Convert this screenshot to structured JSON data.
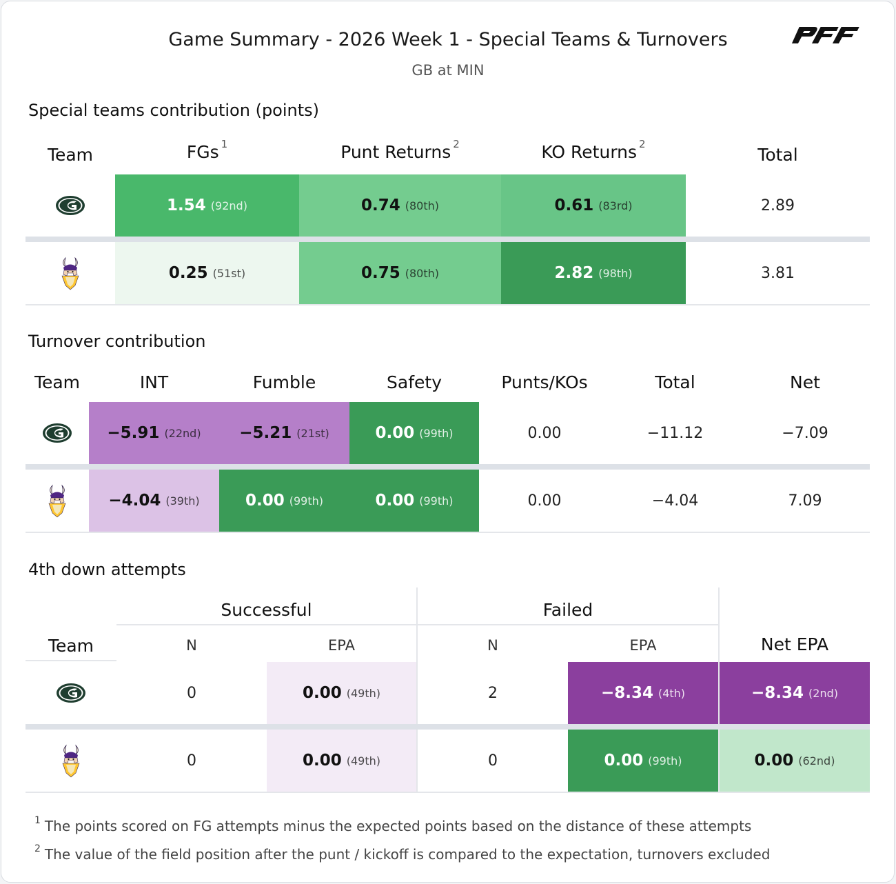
{
  "header": {
    "title": "Game Summary - 2026 Week 1 - Special Teams & Turnovers",
    "subtitle": "GB at MIN",
    "brand_logo": "PFF"
  },
  "teams": [
    {
      "abbr": "GB",
      "icon": "packers-logo-icon"
    },
    {
      "abbr": "MIN",
      "icon": "vikings-logo-icon"
    }
  ],
  "special_teams": {
    "title": "Special teams contribution (points)",
    "headers": {
      "team": "Team",
      "fgs": "FGs",
      "fgs_note": "1",
      "punt": "Punt Returns",
      "punt_note": "2",
      "ko": "KO Returns",
      "ko_note": "2",
      "total": "Total"
    },
    "rows": [
      {
        "fgs": {
          "value": "1.54",
          "rank": "(92nd)",
          "color": "#49b86b"
        },
        "punt": {
          "value": "0.74",
          "rank": "(80th)",
          "color": "#74cc8f"
        },
        "ko": {
          "value": "0.61",
          "rank": "(83rd)",
          "color": "#68c587"
        },
        "total": "2.89"
      },
      {
        "fgs": {
          "value": "0.25",
          "rank": "(51st)",
          "color": "#edf7ef"
        },
        "punt": {
          "value": "0.75",
          "rank": "(80th)",
          "color": "#74cc8f"
        },
        "ko": {
          "value": "2.82",
          "rank": "(98th)",
          "color": "#3a9b57"
        },
        "total": "3.81"
      }
    ]
  },
  "turnovers": {
    "title": "Turnover contribution",
    "headers": {
      "team": "Team",
      "int": "INT",
      "fumble": "Fumble",
      "safety": "Safety",
      "punts": "Punts/KOs",
      "total": "Total",
      "net": "Net"
    },
    "rows": [
      {
        "int": {
          "value": "−5.91",
          "rank": "(22nd)",
          "color": "#b57fc9"
        },
        "fumble": {
          "value": "−5.21",
          "rank": "(21st)",
          "color": "#b57fc9"
        },
        "safety": {
          "value": "0.00",
          "rank": "(99th)",
          "color": "#3a9b57"
        },
        "punts": "0.00",
        "total": "−11.12",
        "net": "−7.09"
      },
      {
        "int": {
          "value": "−4.04",
          "rank": "(39th)",
          "color": "#dcc2e6"
        },
        "fumble": {
          "value": "0.00",
          "rank": "(99th)",
          "color": "#3a9b57"
        },
        "safety": {
          "value": "0.00",
          "rank": "(99th)",
          "color": "#3a9b57"
        },
        "punts": "0.00",
        "total": "−4.04",
        "net": "7.09"
      }
    ]
  },
  "fourth_down": {
    "title": "4th down attempts",
    "groups": {
      "successful": "Successful",
      "failed": "Failed"
    },
    "headers": {
      "team": "Team",
      "n": "N",
      "epa": "EPA",
      "net_epa": "Net EPA"
    },
    "rows": [
      {
        "succ_n": "0",
        "succ_epa": {
          "value": "0.00",
          "rank": "(49th)",
          "color": "#f3ebf6"
        },
        "fail_n": "2",
        "fail_epa": {
          "value": "−8.34",
          "rank": "(4th)",
          "color": "#8b3f9e"
        },
        "net_epa": {
          "value": "−8.34",
          "rank": "(2nd)",
          "color": "#8b3f9e"
        }
      },
      {
        "succ_n": "0",
        "succ_epa": {
          "value": "0.00",
          "rank": "(49th)",
          "color": "#f3ebf6"
        },
        "fail_n": "0",
        "fail_epa": {
          "value": "0.00",
          "rank": "(99th)",
          "color": "#3a9b57"
        },
        "net_epa": {
          "value": "0.00",
          "rank": "(62nd)",
          "color": "#c1e7cb"
        }
      }
    ]
  },
  "footnotes": [
    {
      "mark": "1",
      "text": "The points scored on FG attempts minus the expected points based on the distance of these attempts"
    },
    {
      "mark": "2",
      "text": "The value of the field position after the punt / kickoff is compared to the expectation, turnovers excluded"
    }
  ]
}
